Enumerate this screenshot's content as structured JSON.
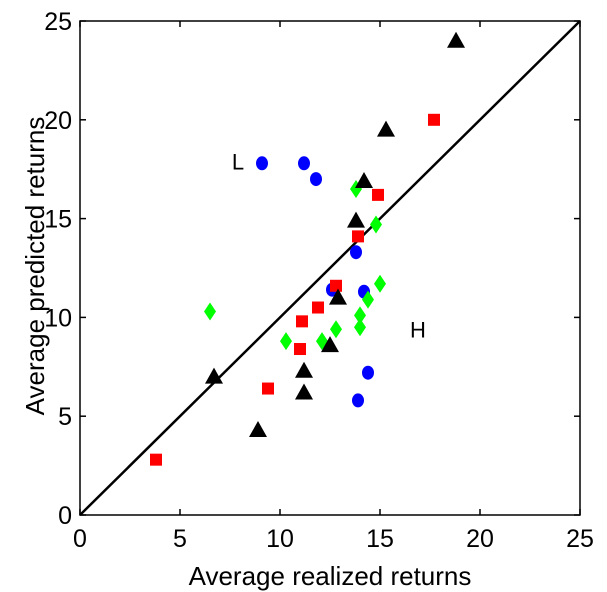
{
  "chart_data": {
    "type": "scatter",
    "xlabel": "Average realized returns",
    "ylabel": "Average predicted returns",
    "xlim": [
      0,
      25
    ],
    "ylim": [
      0,
      25
    ],
    "xticks": [
      "0",
      "5",
      "10",
      "15",
      "20",
      "25"
    ],
    "yticks": [
      "0",
      "5",
      "10",
      "15",
      "20",
      "25"
    ],
    "grid": false,
    "reference_line": {
      "from": [
        0,
        0
      ],
      "to": [
        25,
        25
      ],
      "color": "#000000"
    },
    "annotations": [
      {
        "text": "L",
        "x": 7.9,
        "y": 17.9
      },
      {
        "text": "H",
        "x": 16.9,
        "y": 9.4
      }
    ],
    "series": [
      {
        "marker": "circle",
        "color": "#0000ff",
        "points": [
          [
            9.1,
            17.8
          ],
          [
            11.2,
            17.8
          ],
          [
            11.8,
            17.0
          ],
          [
            13.8,
            13.3
          ],
          [
            12.6,
            11.4
          ],
          [
            14.2,
            11.3
          ],
          [
            14.4,
            7.2
          ],
          [
            13.9,
            5.8
          ]
        ]
      },
      {
        "marker": "square",
        "color": "#ff0000",
        "points": [
          [
            17.7,
            20.0
          ],
          [
            14.9,
            16.2
          ],
          [
            13.9,
            14.1
          ],
          [
            12.8,
            11.6
          ],
          [
            11.9,
            10.5
          ],
          [
            11.1,
            9.8
          ],
          [
            11.0,
            8.4
          ],
          [
            9.4,
            6.4
          ],
          [
            3.8,
            2.8
          ]
        ]
      },
      {
        "marker": "diamond",
        "color": "#00ff00",
        "points": [
          [
            13.8,
            16.5
          ],
          [
            14.8,
            14.7
          ],
          [
            15.0,
            11.7
          ],
          [
            14.4,
            10.9
          ],
          [
            14.0,
            10.1
          ],
          [
            14.0,
            9.5
          ],
          [
            12.8,
            9.4
          ],
          [
            12.1,
            8.8
          ],
          [
            10.3,
            8.8
          ],
          [
            6.5,
            10.3
          ]
        ]
      },
      {
        "marker": "triangle",
        "color": "#000000",
        "points": [
          [
            18.8,
            24.0
          ],
          [
            15.3,
            19.5
          ],
          [
            14.2,
            16.9
          ],
          [
            13.8,
            14.9
          ],
          [
            12.9,
            11.0
          ],
          [
            12.5,
            8.6
          ],
          [
            11.2,
            7.3
          ],
          [
            11.2,
            6.2
          ],
          [
            6.7,
            7.0
          ],
          [
            8.9,
            4.3
          ]
        ]
      }
    ]
  }
}
